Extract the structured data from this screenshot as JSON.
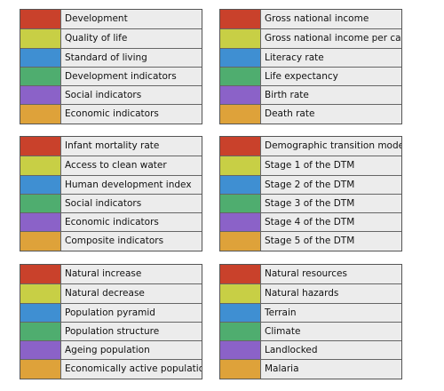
{
  "cards": [
    {
      "rows": [
        "Development",
        "Quality of life",
        "Standard of living",
        "Development indicators",
        "Social indicators",
        "Economic indicators"
      ]
    },
    {
      "rows": [
        "Gross national income",
        "Gross national income per capita",
        "Literacy rate",
        "Life expectancy",
        "Birth rate",
        "Death rate"
      ]
    },
    {
      "rows": [
        "Infant mortality rate",
        "Access to clean water",
        "Human development index",
        "Social indicators",
        "Economic indicators",
        "Composite indicators"
      ]
    },
    {
      "rows": [
        "Demographic transition model",
        "Stage 1 of the DTM",
        "Stage 2 of the DTM",
        "Stage 3 of the DTM",
        "Stage 4 of the DTM",
        "Stage 5 of the DTM"
      ]
    },
    {
      "rows": [
        "Natural increase",
        "Natural decrease",
        "Population pyramid",
        "Population structure",
        "Ageing population",
        "Economically active population"
      ]
    },
    {
      "rows": [
        "Natural resources",
        "Natural hazards",
        "Terrain",
        "Climate",
        "Landlocked",
        "Malaria"
      ]
    }
  ]
}
